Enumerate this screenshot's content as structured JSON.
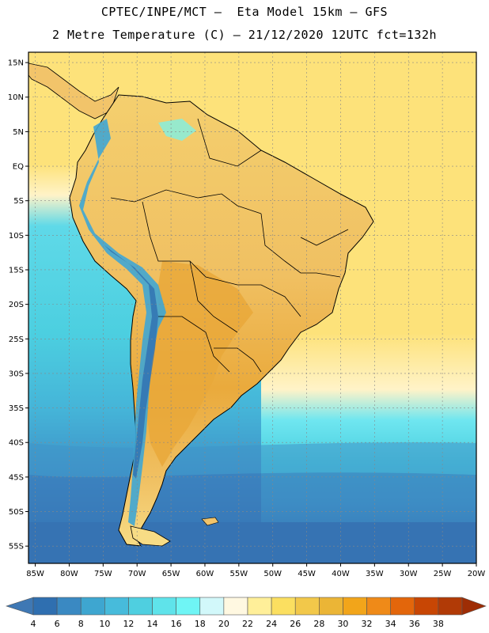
{
  "header": {
    "title_line1": "CPTEC/INPE/MCT –  Eta Model 15km – GFS",
    "title_line2": "2 Metre Temperature (C) – 21/12/2020 12UTC fct=132h"
  },
  "map": {
    "lat_labels": [
      "15N",
      "10N",
      "5N",
      "EQ",
      "5S",
      "10S",
      "15S",
      "20S",
      "25S",
      "30S",
      "35S",
      "40S",
      "45S",
      "50S",
      "55S"
    ],
    "lon_labels": [
      "85W",
      "80W",
      "75W",
      "70W",
      "65W",
      "60W",
      "55W",
      "50W",
      "45W",
      "40W",
      "35W",
      "30W",
      "25W",
      "20W"
    ],
    "lat_range": [
      -57.5,
      16.5
    ],
    "lon_range": [
      -86,
      -20
    ]
  },
  "colorbar": {
    "labels": [
      "4",
      "6",
      "8",
      "10",
      "12",
      "14",
      "16",
      "18",
      "20",
      "22",
      "24",
      "26",
      "28",
      "30",
      "32",
      "34",
      "36",
      "38"
    ],
    "colors": [
      "#3f78b4",
      "#2f6fb0",
      "#3a89c2",
      "#3ea6d0",
      "#47bbdb",
      "#4fcfe0",
      "#5fe3ea",
      "#6ff5f5",
      "#d2f8fa",
      "#fff8e1",
      "#ffef99",
      "#fbdf60",
      "#f2c84a",
      "#ebb536",
      "#f2a51a",
      "#ef8a18",
      "#e3660b",
      "#c84604",
      "#b13a06",
      "#9e2d05"
    ]
  },
  "style": {
    "ocean_deep": "#2d5f9e",
    "ocean_mid": "#3f93c8",
    "ocean_cyan": "#4ccfe0",
    "tropical_sea": "#fde27a",
    "land_warm": "#f2c46a",
    "land_hot": "#e9a83a",
    "andes": "#3fa6d4",
    "border": "#000000"
  }
}
